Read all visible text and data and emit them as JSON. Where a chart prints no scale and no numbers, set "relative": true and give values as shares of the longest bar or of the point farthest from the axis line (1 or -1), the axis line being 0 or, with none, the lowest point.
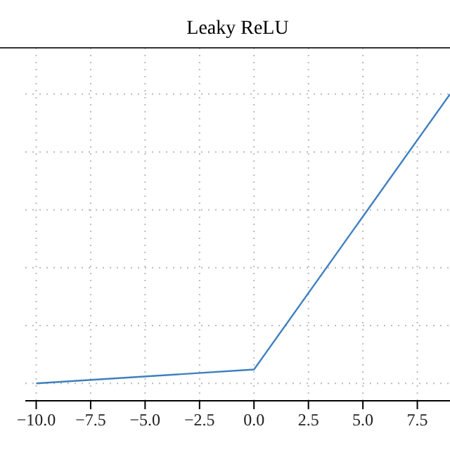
{
  "chart_data": {
    "type": "line",
    "title": "Leaky ReLU",
    "x": [
      -10,
      0,
      9
    ],
    "values": [
      0,
      0.048,
      1
    ],
    "relative": true,
    "color": "#3f7fbf",
    "xlim": [
      -10.5,
      9
    ],
    "xticks": [
      {
        "value": -10,
        "label": "−10.0"
      },
      {
        "value": -7.5,
        "label": "−7.5"
      },
      {
        "value": -5,
        "label": "−5.0"
      },
      {
        "value": -2.5,
        "label": "−2.5"
      },
      {
        "value": 0,
        "label": "0.0"
      },
      {
        "value": 2.5,
        "label": "2.5"
      },
      {
        "value": 5,
        "label": "5.0"
      },
      {
        "value": 7.5,
        "label": "7.5"
      }
    ],
    "grid": true,
    "tick_labels": "x"
  }
}
